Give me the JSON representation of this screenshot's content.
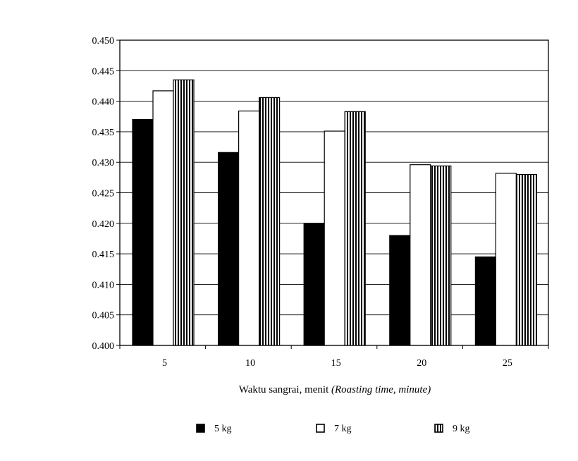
{
  "chart_data": {
    "type": "bar",
    "categories": [
      "5",
      "10",
      "15",
      "20",
      "25"
    ],
    "series": [
      {
        "name": "5 kg",
        "values": [
          0.437,
          0.4316,
          0.42,
          0.418,
          0.4145
        ],
        "pattern": "solid"
      },
      {
        "name": "7 kg",
        "values": [
          0.4417,
          0.4384,
          0.4351,
          0.4296,
          0.4282
        ],
        "pattern": "hollow"
      },
      {
        "name": "9 kg",
        "values": [
          0.4435,
          0.4406,
          0.4383,
          0.4294,
          0.428
        ],
        "pattern": "vertical-stripes"
      }
    ],
    "title": "",
    "xlabel": "Waktu sangrai, menit",
    "xlabel_italic": "(Roasting time, minute)",
    "ylabel": "",
    "ylim": [
      0.4,
      0.45
    ],
    "yticks": [
      "0.400",
      "0.405",
      "0.410",
      "0.415",
      "0.420",
      "0.425",
      "0.430",
      "0.435",
      "0.440",
      "0.445",
      "0.450"
    ],
    "grid": true,
    "legend_position": "bottom",
    "colors": {
      "bar_fill": "#000000",
      "bar_stroke": "#000000",
      "background": "#ffffff",
      "gridline": "#000000"
    }
  }
}
